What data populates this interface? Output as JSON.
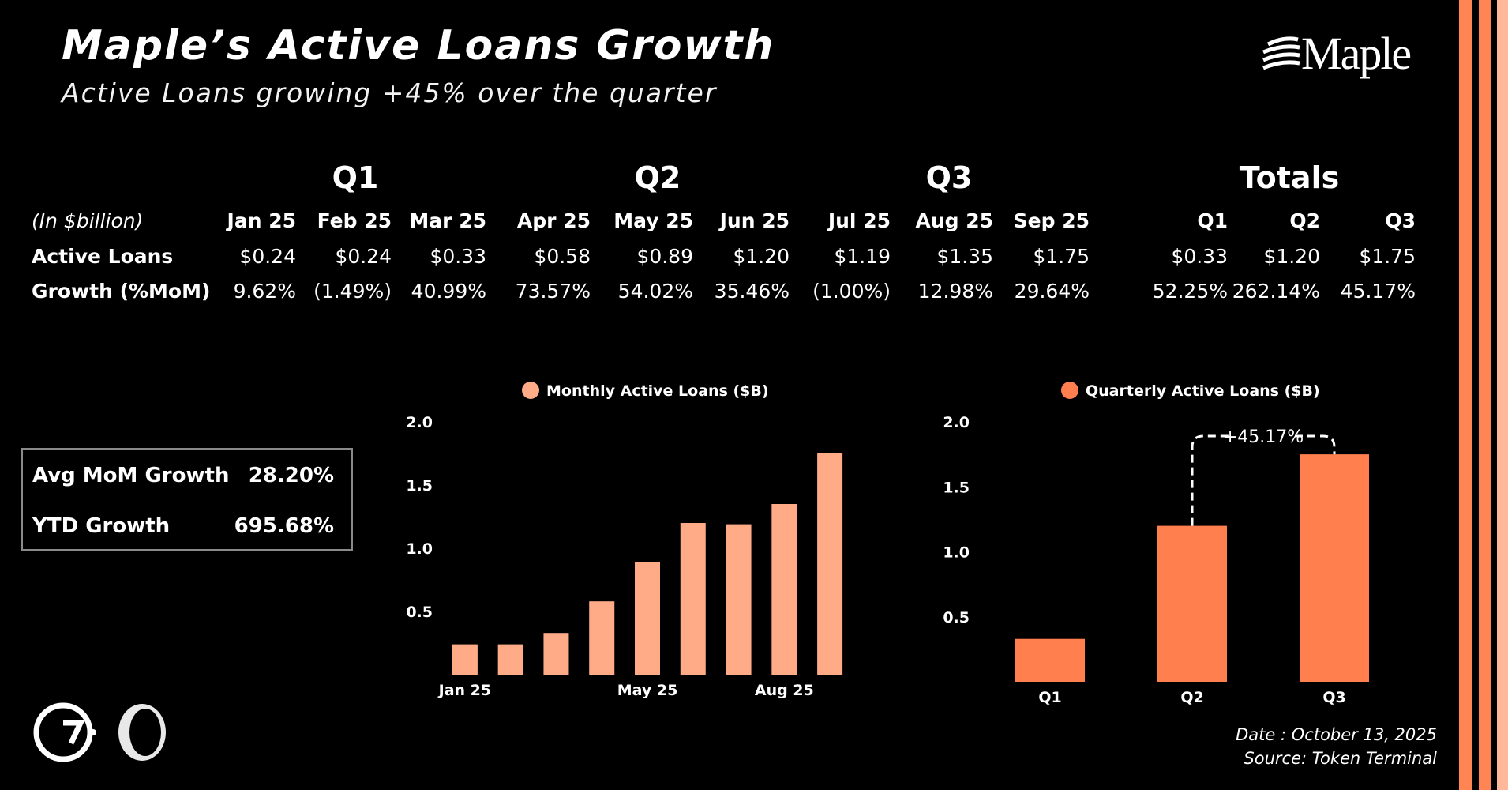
{
  "header": {
    "title": "Maple’s Active Loans Growth",
    "subtitle": "Active Loans growing +45% over the quarter",
    "brand": "Maple"
  },
  "table": {
    "unit_label": "(In $billion)",
    "quarter_headers": [
      "Q1",
      "Q2",
      "Q3",
      "Totals"
    ],
    "months": [
      "Jan 25",
      "Feb 25",
      "Mar 25",
      "Apr 25",
      "May 25",
      "Jun 25",
      "Jul 25",
      "Aug 25",
      "Sep 25"
    ],
    "total_headers": [
      "Q1",
      "Q2",
      "Q3"
    ],
    "rows": [
      {
        "label": "Active Loans",
        "values": [
          "$0.24",
          "$0.24",
          "$0.33",
          "$0.58",
          "$0.89",
          "$1.20",
          "$1.19",
          "$1.35",
          "$1.75"
        ],
        "totals": [
          "$0.33",
          "$1.20",
          "$1.75"
        ]
      },
      {
        "label": "Growth (%MoM)",
        "values": [
          "9.62%",
          "(1.49%)",
          "40.99%",
          "73.57%",
          "54.02%",
          "35.46%",
          "(1.00%)",
          "12.98%",
          "29.64%"
        ],
        "totals": [
          "52.25%",
          "262.14%",
          "45.17%"
        ]
      }
    ]
  },
  "summary": {
    "avg_label": "Avg MoM Growth",
    "avg_value": "28.20%",
    "ytd_label": "YTD Growth",
    "ytd_value": "695.68%"
  },
  "colors": {
    "monthly_bar": "#ffab88",
    "quarterly_bar": "#ff7f4f",
    "stripe": "#ff8555",
    "background": "#000000"
  },
  "chart_data": [
    {
      "type": "bar",
      "series": [
        {
          "name": "Monthly Active Loans ($B)",
          "values": [
            0.24,
            0.24,
            0.33,
            0.58,
            0.89,
            1.2,
            1.19,
            1.35,
            1.75
          ]
        }
      ],
      "categories": [
        "Jan 25",
        "Feb 25",
        "Mar 25",
        "Apr 25",
        "May 25",
        "Jun 25",
        "Jul 25",
        "Aug 25",
        "Sep 25"
      ],
      "x_tick_labels": [
        "Jan 25",
        "",
        "",
        "",
        "May 25",
        "",
        "",
        "Aug 25",
        ""
      ],
      "y_ticks": [
        "0.5",
        "1.0",
        "1.5",
        "2.0"
      ],
      "ylim": [
        0,
        2.0
      ],
      "grid": false,
      "legend": "top"
    },
    {
      "type": "bar",
      "series": [
        {
          "name": "Quarterly Active Loans ($B)",
          "values": [
            0.33,
            1.2,
            1.75
          ]
        }
      ],
      "categories": [
        "Q1",
        "Q2",
        "Q3"
      ],
      "y_ticks": [
        "0.5",
        "1.0",
        "1.5",
        "2.0"
      ],
      "ylim": [
        0,
        2.0
      ],
      "grid": false,
      "legend": "top",
      "annotation": "+45.17%"
    }
  ],
  "footer": {
    "date": "Date : October 13, 2025",
    "source": "Source: Token Terminal"
  }
}
